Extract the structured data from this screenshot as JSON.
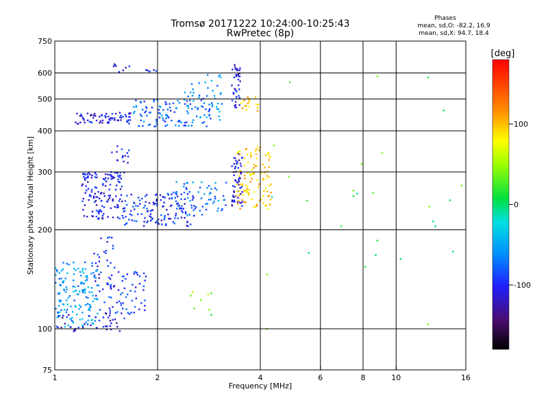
{
  "chart_data": {
    "type": "scatter",
    "title": "Tromsø 20171222 10:24:00-10:25:43",
    "subtitle": "RwPretec (8p)",
    "xlabel": "Frequency [MHz]",
    "ylabel": "Stationary phase Virtual Height [km]",
    "x_scale": "log",
    "y_scale": "log",
    "xlim": [
      1,
      16
    ],
    "ylim": [
      75,
      750
    ],
    "x_ticks": [
      1,
      2,
      4,
      6,
      8,
      10,
      16
    ],
    "y_ticks": [
      75,
      100,
      200,
      300,
      400,
      500,
      600,
      750
    ],
    "grid": true,
    "phase_stats": {
      "title": "Phases",
      "line_o": "mean, sd,O: -82.2, 16.9",
      "line_x": "mean, sd,X:  94.7, 18.4"
    },
    "colorbar": {
      "label": "[deg]",
      "range": [
        -180,
        180
      ],
      "ticks": [
        100,
        0,
        -100
      ]
    },
    "series": [
      {
        "x_range": [
          1.15,
          1.7
        ],
        "y_range": [
          420,
          455
        ],
        "phase": -105,
        "n": 70
      },
      {
        "x_range": [
          1.7,
          2.9
        ],
        "y_range": [
          410,
          500
        ],
        "phase": -75,
        "n": 110
      },
      {
        "x_range": [
          2.4,
          3.1
        ],
        "y_range": [
          430,
          600
        ],
        "phase": -60,
        "n": 45
      },
      {
        "x_range": [
          1.45,
          1.75
        ],
        "y_range": [
          600,
          640
        ],
        "phase": -110,
        "n": 8
      },
      {
        "x_range": [
          1.85,
          2.0
        ],
        "y_range": [
          605,
          615
        ],
        "phase": -100,
        "n": 6
      },
      {
        "x_range": [
          3.3,
          3.5
        ],
        "y_range": [
          470,
          650
        ],
        "phase": -105,
        "n": 40
      },
      {
        "x_range": [
          3.5,
          3.95
        ],
        "y_range": [
          460,
          520
        ],
        "phase": 100,
        "n": 18
      },
      {
        "x_range": [
          1.2,
          1.6
        ],
        "y_range": [
          215,
          300
        ],
        "phase": -105,
        "n": 140
      },
      {
        "x_range": [
          1.6,
          2.6
        ],
        "y_range": [
          205,
          260
        ],
        "phase": -95,
        "n": 140
      },
      {
        "x_range": [
          2.2,
          3.2
        ],
        "y_range": [
          220,
          280
        ],
        "phase": -70,
        "n": 60
      },
      {
        "x_range": [
          3.3,
          3.55
        ],
        "y_range": [
          235,
          350
        ],
        "phase": -110,
        "n": 60
      },
      {
        "x_range": [
          3.4,
          4.3
        ],
        "y_range": [
          230,
          360
        ],
        "phase": 95,
        "n": 110
      },
      {
        "x_range": [
          1.45,
          1.65
        ],
        "y_range": [
          320,
          370
        ],
        "phase": -105,
        "n": 14
      },
      {
        "x_range": [
          1.0,
          1.35
        ],
        "y_range": [
          100,
          160
        ],
        "phase": -55,
        "n": 150
      },
      {
        "x_range": [
          1.3,
          1.85
        ],
        "y_range": [
          110,
          150
        ],
        "phase": -95,
        "n": 80
      },
      {
        "x_range": [
          1.0,
          1.6
        ],
        "y_range": [
          98,
          112
        ],
        "phase": -110,
        "n": 45
      },
      {
        "x_range": [
          1.3,
          1.5
        ],
        "y_range": [
          150,
          195
        ],
        "phase": -100,
        "n": 20
      },
      {
        "x_range": [
          2.5,
          3.0
        ],
        "y_range": [
          105,
          130
        ],
        "phase": 40,
        "n": 8
      },
      {
        "x_range": [
          4.0,
          16.0
        ],
        "y_range": [
          100,
          650
        ],
        "phase": 20,
        "n": 30
      }
    ]
  }
}
